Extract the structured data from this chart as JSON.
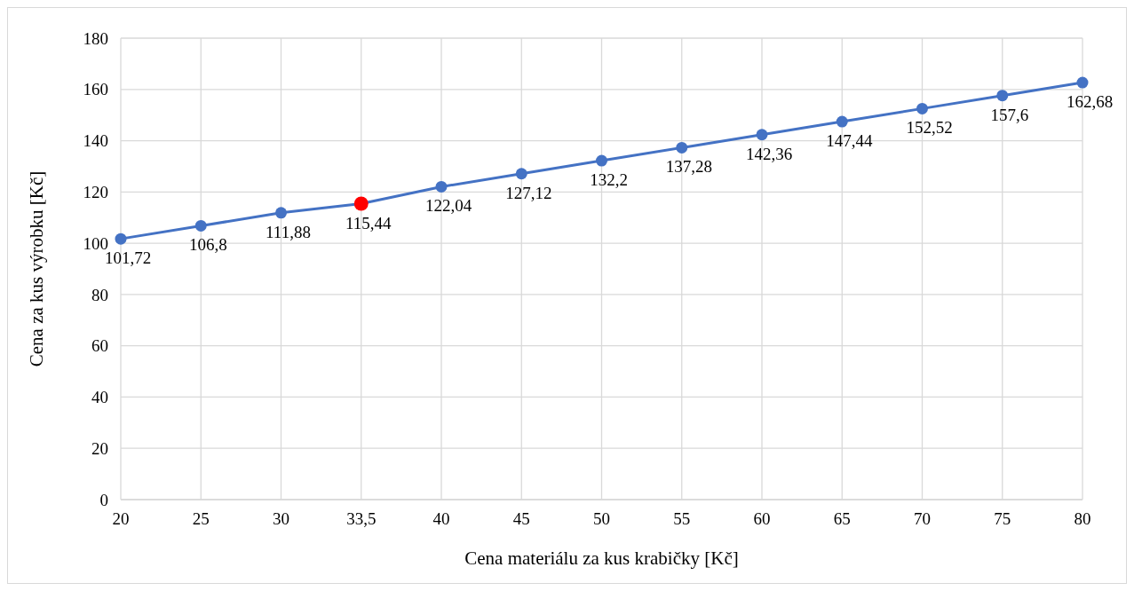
{
  "chart_data": {
    "type": "line",
    "xlabel": "Cena materiálu za kus krabičky [Kč]",
    "ylabel": "Cena za kus výrobku [Kč]",
    "categories": [
      "20",
      "25",
      "30",
      "33,5",
      "40",
      "45",
      "50",
      "55",
      "60",
      "65",
      "70",
      "75",
      "80"
    ],
    "series": [
      {
        "color": "#4472c4",
        "colors": [
          "#4472c4",
          "#4472c4",
          "#4472c4",
          "#ff0000",
          "#4472c4",
          "#4472c4",
          "#4472c4",
          "#4472c4",
          "#4472c4",
          "#4472c4",
          "#4472c4",
          "#4472c4",
          "#4472c4"
        ],
        "values": [
          101.72,
          106.8,
          111.88,
          115.44,
          122.04,
          127.12,
          132.2,
          137.28,
          142.36,
          147.44,
          152.52,
          157.6,
          162.68
        ],
        "value_labels": [
          "101,72",
          "106,8",
          "111,88",
          "115,44",
          "122,04",
          "127,12",
          "132,2",
          "137,28",
          "142,36",
          "147,44",
          "152,52",
          "157,6",
          "162,68"
        ]
      }
    ],
    "ylim": [
      0,
      180
    ],
    "yticks": [
      0,
      20,
      40,
      60,
      80,
      100,
      120,
      140,
      160,
      180
    ],
    "grid": true,
    "marker": "circle",
    "line_style": "solid"
  }
}
